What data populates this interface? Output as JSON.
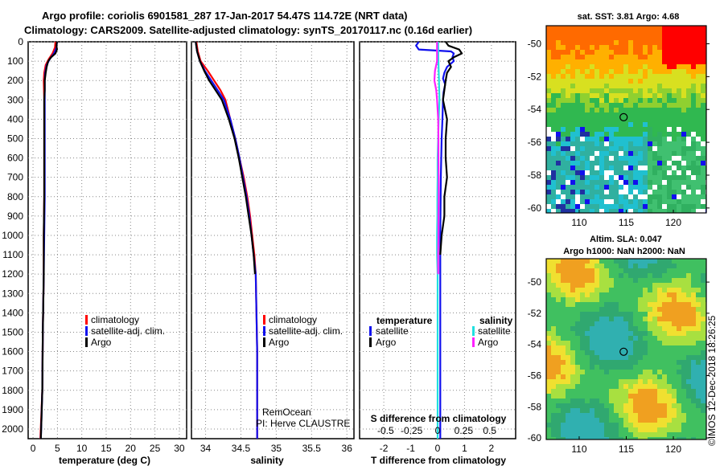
{
  "title": {
    "line1": "Argo profile: coriolis 6901581_287 17-Jan-2017 54.47S 114.72E (NRT data)",
    "line2": "Climatology: CARS2009. Satellite-adjusted climatology: synTS_20170117.nc (0.16d earlier)"
  },
  "colors": {
    "climatology": "#ff0000",
    "satellite": "#1010ee",
    "argo": "#000000",
    "sat_cyan": "#20e0e0",
    "argo_magenta": "#ff20ff"
  },
  "chart_data": [
    {
      "type": "line",
      "name": "temperature",
      "xlabel": "temperature (deg C)",
      "ylabel": "depth (dbar)",
      "xlim": [
        -1,
        31.5
      ],
      "ylim": [
        2050,
        0
      ],
      "xticks": [
        0,
        5,
        10,
        15,
        20,
        25,
        30
      ],
      "yticks": [
        0,
        100,
        200,
        300,
        400,
        500,
        600,
        700,
        800,
        900,
        1000,
        1100,
        1200,
        1300,
        1400,
        1500,
        1600,
        1700,
        1800,
        1900,
        2000
      ],
      "grid": true,
      "legend": [
        "climatology",
        "satellite-adj. clim.",
        "Argo"
      ],
      "series": [
        {
          "name": "climatology",
          "color": "#ff0000",
          "depth": [
            0,
            30,
            60,
            90,
            120,
            160,
            200,
            300,
            500,
            800,
            1000,
            1200,
            1500,
            1800,
            2050
          ],
          "values": [
            4.6,
            4.5,
            4.0,
            3.2,
            2.6,
            2.3,
            2.2,
            2.3,
            2.3,
            2.3,
            2.2,
            2.2,
            2.0,
            1.9,
            1.5
          ]
        },
        {
          "name": "satellite-adj. clim.",
          "color": "#1010ee",
          "depth": [
            0,
            30,
            60,
            90,
            120,
            160,
            200,
            300,
            500,
            800,
            1000,
            1200,
            1500,
            1800,
            2050
          ],
          "values": [
            4.9,
            4.8,
            4.3,
            3.4,
            2.8,
            2.5,
            2.4,
            2.4,
            2.4,
            2.4,
            2.3,
            2.2,
            2.0,
            1.9,
            1.6
          ]
        },
        {
          "name": "Argo",
          "color": "#000000",
          "depth": [
            0,
            20,
            40,
            60,
            80,
            100,
            130,
            160,
            200,
            250,
            300,
            500,
            800,
            1000,
            1200,
            1500,
            1800,
            2050
          ],
          "values": [
            4.9,
            4.8,
            4.9,
            4.6,
            3.7,
            3.1,
            2.8,
            2.6,
            2.4,
            2.4,
            2.3,
            2.3,
            2.3,
            2.2,
            2.2,
            2.0,
            1.9,
            1.6
          ]
        }
      ]
    },
    {
      "type": "line",
      "name": "salinity",
      "xlabel": "salinity",
      "ylabel": "depth (dbar)",
      "xlim": [
        33.8,
        36.1
      ],
      "ylim": [
        2050,
        0
      ],
      "xticks": [
        34,
        34.5,
        35,
        35.5,
        36
      ],
      "xtick_labels": [
        "34",
        "34.5",
        "35",
        "35.5",
        "36"
      ],
      "grid": true,
      "legend": [
        "climatology",
        "satellite-adj. clim.",
        "Argo"
      ],
      "series": [
        {
          "name": "climatology",
          "color": "#ff0000",
          "depth": [
            0,
            50,
            100,
            150,
            200,
            250,
            300,
            400,
            500,
            600,
            700,
            800,
            900,
            1000,
            1100,
            1200,
            1400,
            1600,
            1800,
            2050
          ],
          "values": [
            33.87,
            33.89,
            33.93,
            34.03,
            34.12,
            34.21,
            34.28,
            34.35,
            34.42,
            34.48,
            34.54,
            34.59,
            34.63,
            34.66,
            34.69,
            34.71,
            34.72,
            34.73,
            34.73,
            34.73
          ]
        },
        {
          "name": "satellite-adj. clim.",
          "color": "#1010ee",
          "depth": [
            0,
            50,
            100,
            150,
            200,
            250,
            300,
            400,
            500,
            600,
            700,
            800,
            900,
            1000,
            1100,
            1200,
            1400,
            1600,
            1800,
            2050
          ],
          "values": [
            33.86,
            33.88,
            33.92,
            33.99,
            34.08,
            34.17,
            34.26,
            34.35,
            34.42,
            34.48,
            34.53,
            34.58,
            34.62,
            34.65,
            34.68,
            34.71,
            34.72,
            34.73,
            34.73,
            34.73
          ]
        },
        {
          "name": "Argo",
          "color": "#000000",
          "depth": [
            0,
            50,
            100,
            150,
            200,
            250,
            300,
            400,
            500,
            600,
            700,
            800,
            900,
            1000,
            1100,
            1200
          ],
          "values": [
            33.86,
            33.88,
            33.92,
            33.98,
            34.05,
            34.14,
            34.23,
            34.33,
            34.41,
            34.47,
            34.52,
            34.57,
            34.61,
            34.65,
            34.68,
            34.7
          ]
        }
      ]
    },
    {
      "type": "line",
      "name": "differences",
      "xlabel": "T difference from climatology",
      "xlabel2": "S difference from climatology",
      "xlim": [
        -2.9,
        2.9
      ],
      "ylim": [
        2050,
        0
      ],
      "xticks": [
        -2,
        -1,
        0,
        1,
        2
      ],
      "xticks2": [
        -0.5,
        -0.25,
        0,
        0.25,
        0.5
      ],
      "xtick2_labels": [
        "-0.5",
        "-0.25",
        "0",
        "0.25",
        "0.5"
      ],
      "grid": true,
      "legend_left_title": "temperature",
      "legend_right_title": "salinity",
      "series": [
        {
          "name": "temperature satellite",
          "color": "#1010ee",
          "depth": [
            0,
            20,
            40,
            50,
            60,
            80,
            100,
            130,
            160,
            190,
            220,
            260,
            300,
            400,
            500,
            700,
            1000,
            1500,
            2050
          ],
          "values": [
            -0.7,
            -0.8,
            -0.7,
            0.5,
            0.6,
            0.55,
            0.6,
            0.35,
            0.25,
            0.2,
            0.28,
            0.22,
            0.2,
            0.18,
            0.15,
            0.12,
            0.1,
            0.1,
            0.1
          ]
        },
        {
          "name": "temperature Argo",
          "color": "#000000",
          "depth": [
            0,
            20,
            40,
            60,
            80,
            100,
            130,
            160,
            200,
            300,
            400,
            500,
            600,
            700,
            800,
            900,
            1000,
            1100
          ],
          "values": [
            0.3,
            0.4,
            0.8,
            0.9,
            0.6,
            0.4,
            0.5,
            0.35,
            0.3,
            0.2,
            0.35,
            0.3,
            0.3,
            0.35,
            0.25,
            0.25,
            0.15,
            0.1
          ]
        },
        {
          "name": "salinity satellite",
          "color": "#20e0e0",
          "depth": [
            0,
            100,
            200,
            300,
            400,
            500,
            600,
            700,
            800,
            900,
            1000,
            1100,
            1200,
            1500,
            2050
          ],
          "values": [
            0.02,
            0.03,
            0.05,
            0.07,
            0.04,
            0.02,
            0.0,
            0.0,
            -0.01,
            -0.01,
            -0.02,
            -0.02,
            0.0,
            0.0,
            0.0
          ]
        },
        {
          "name": "salinity Argo",
          "color": "#ff20ff",
          "depth": [
            0,
            50,
            100,
            150,
            200,
            250,
            300,
            400,
            500,
            600,
            700,
            800,
            900,
            1000,
            1100,
            1200
          ],
          "values": [
            -0.02,
            -0.02,
            -0.02,
            -0.1,
            -0.12,
            -0.05,
            -0.02,
            0.02,
            0.03,
            0.03,
            0.04,
            0.04,
            0.03,
            0.03,
            0.02,
            0.02
          ]
        }
      ]
    },
    {
      "type": "heatmap",
      "name": "sst-map",
      "title": "sat. SST: 3.81 Argo: 4.68",
      "xlim": [
        106.5,
        123.5
      ],
      "ylim": [
        -60.3,
        -48.9
      ],
      "xticks": [
        110,
        115,
        120
      ],
      "yticks": [
        -50,
        -52,
        -54,
        -56,
        -58,
        -60
      ],
      "argo_position": {
        "lon": 114.72,
        "lat": -54.47
      }
    },
    {
      "type": "heatmap",
      "name": "sla-map",
      "title_line1": "Altim. SLA: 0.047",
      "title_line2": "Argo h1000: NaN h2000: NaN",
      "xlim": [
        106.5,
        123.5
      ],
      "ylim": [
        -60.1,
        -48.5
      ],
      "xticks": [
        110,
        115,
        120
      ],
      "yticks": [
        -50,
        -52,
        -54,
        -56,
        -58,
        -60
      ],
      "argo_position": {
        "lon": 114.72,
        "lat": -54.47
      }
    }
  ],
  "legend_temperature": {
    "climatology": "climatology",
    "satellite": "satellite-adj. clim.",
    "argo": "Argo"
  },
  "legend_salinity": {
    "climatology": "climatology",
    "satellite": "satellite-adj. clim.",
    "argo": "Argo"
  },
  "legend_diff": {
    "left_title": "temperature",
    "right_title": "salinity",
    "left_sat": "satellite",
    "left_argo": "Argo",
    "right_sat": "satellite",
    "right_argo": "Argo"
  },
  "pi_note": {
    "line1": "RemOcean",
    "line2": "PI: Herve CLAUSTRE"
  },
  "credit": "©IMOS 12-Dec-2018 18:26:25"
}
